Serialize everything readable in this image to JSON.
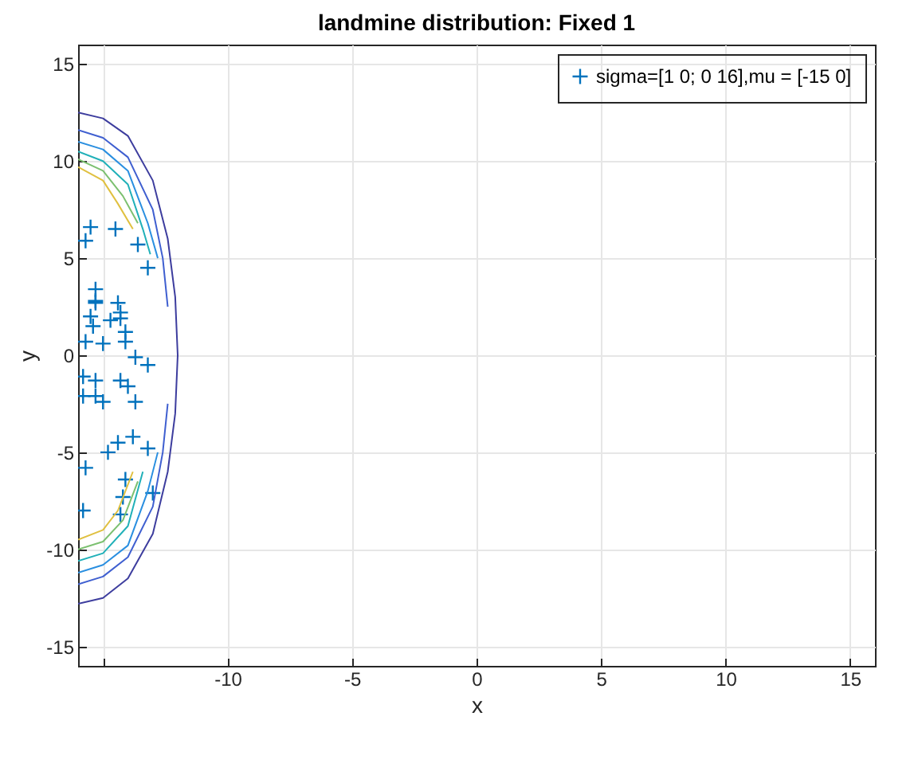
{
  "chart_data": {
    "type": "scatter",
    "title": "landmine distribution: Fixed 1",
    "xlabel": "x",
    "ylabel": "y",
    "xlim": [
      -16,
      16
    ],
    "ylim": [
      -16,
      16
    ],
    "xticks": [
      {
        "value": -15,
        "label": null
      },
      -10,
      -5,
      0,
      5,
      10,
      15
    ],
    "yticks": [
      -15,
      -10,
      -5,
      0,
      5,
      10,
      15
    ],
    "grid": true,
    "legend": "top right",
    "marker": "cross",
    "series": [
      {
        "name": "sigma=[1 0; 0 16],mu = [-15 0]",
        "color": "#0072bd",
        "x": [
          -15.5,
          -14.5,
          -15.7,
          -13.6,
          -13.2,
          -15.3,
          -15.3,
          -14.4,
          -15.3,
          -15.5,
          -14.3,
          -14.7,
          -14.3,
          -15.4,
          -14.1,
          -15.7,
          -15.0,
          -14.1,
          -13.7,
          -13.2,
          -15.8,
          -15.3,
          -14.3,
          -14.0,
          -15.8,
          -15.3,
          -15.0,
          -13.7,
          -14.4,
          -13.8,
          -13.2,
          -14.8,
          -15.7,
          -14.1,
          -13.0,
          -14.2,
          -15.8,
          -14.3
        ],
        "values": [
          6.6,
          6.5,
          5.9,
          5.7,
          4.5,
          3.4,
          2.8,
          2.7,
          2.7,
          2.0,
          2.2,
          1.8,
          1.9,
          1.5,
          1.2,
          0.7,
          0.6,
          0.7,
          -0.1,
          -0.5,
          -1.1,
          -1.3,
          -1.3,
          -1.6,
          -2.1,
          -2.1,
          -2.4,
          -2.4,
          -4.5,
          -4.2,
          -4.8,
          -5.0,
          -5.8,
          -6.4,
          -7.1,
          -7.3,
          -8.0,
          -8.2
        ]
      },
      {
        "type": "line",
        "marker": "none",
        "color": "#3d3d9e",
        "x": [
          -16,
          -15,
          -14,
          -13,
          -12.4,
          -12.1,
          -12,
          -12.1,
          -12.4,
          -13,
          -14,
          -15,
          -16
        ],
        "values": [
          12.5,
          12.2,
          11.3,
          9.0,
          6,
          3,
          0,
          -3,
          -6,
          -9.2,
          -11.5,
          -12.5,
          -12.8
        ]
      },
      {
        "type": "line",
        "marker": "none",
        "color": "#3f5fd0",
        "x": [
          -16,
          -15,
          -14,
          -13,
          -12.6,
          -12.4,
          null,
          -12.4,
          -12.6,
          -13,
          -14,
          -15,
          -16
        ],
        "values": [
          11.6,
          11.2,
          10.2,
          7.5,
          5,
          2.5,
          null,
          -2.5,
          -5,
          -7.8,
          -10.4,
          -11.4,
          -11.8
        ]
      },
      {
        "type": "line",
        "marker": "none",
        "color": "#2a8fe0",
        "x": [
          -16,
          -15,
          -14,
          -13.2,
          -12.8,
          null,
          -12.8,
          -13.2,
          -14,
          -15,
          -16
        ],
        "values": [
          11.0,
          10.6,
          9.5,
          6.8,
          5,
          null,
          -5,
          -7.0,
          -9.8,
          -10.8,
          -11.2
        ]
      },
      {
        "type": "line",
        "marker": "none",
        "color": "#20b0b8",
        "x": [
          -16,
          -15,
          -14,
          -13.4,
          -13.1,
          null,
          -13.4,
          -14,
          -15,
          -16
        ],
        "values": [
          10.5,
          10.0,
          8.8,
          6.5,
          5.2,
          null,
          -6.0,
          -8.8,
          -10.2,
          -10.6
        ]
      },
      {
        "type": "line",
        "marker": "none",
        "color": "#7cc070",
        "x": [
          -16,
          -15,
          -14.2,
          -13.6,
          null,
          -13.6,
          -14.2,
          -15,
          -16
        ],
        "values": [
          10.1,
          9.5,
          8.2,
          6.8,
          null,
          -6.5,
          -8.5,
          -9.6,
          -10.0
        ]
      },
      {
        "type": "line",
        "marker": "none",
        "color": "#e0c040",
        "x": [
          -16,
          -15,
          -14.4,
          -13.8,
          null,
          -13.8,
          -14.4,
          -15,
          -16
        ],
        "values": [
          9.7,
          9.0,
          7.8,
          6.5,
          null,
          -6.0,
          -8.0,
          -9.0,
          -9.5
        ]
      }
    ]
  }
}
